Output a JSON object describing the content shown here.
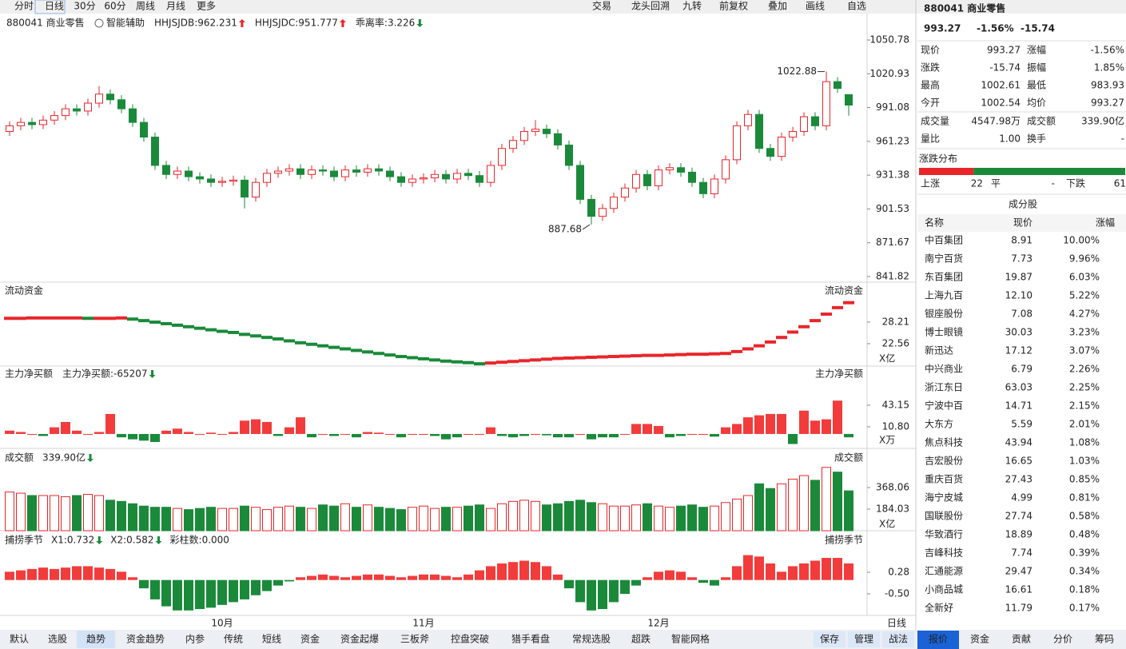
{
  "toolbar": {
    "periods": [
      "分时",
      "日线",
      "30分",
      "60分",
      "周线",
      "月线",
      "更多"
    ],
    "tools": [
      "交易",
      "龙头回溯",
      "九转",
      "前复权",
      "叠加",
      "画线",
      "自选"
    ]
  },
  "main": {
    "name": "880041 商业零售",
    "assist": "智能辅助",
    "indicators": [
      {
        "text": "HHJSJDB:962.231",
        "color": "#e08a00",
        "arrow": "up"
      },
      {
        "text": "HHJSJDC:951.777",
        "color": "#e8262a",
        "arrow": "up"
      },
      {
        "text": "乖离率:3.226",
        "color": "#e08a00",
        "arrow": "down"
      }
    ]
  },
  "price": {
    "ylim": [
      839.0,
      1073.4
    ],
    "yticks": [
      1050.78,
      1020.93,
      991.08,
      961.23,
      931.38,
      901.53,
      871.67,
      841.82
    ],
    "months": [
      null,
      null,
      null,
      null,
      null,
      null,
      null,
      null,
      null,
      null,
      null,
      null,
      null,
      null,
      null,
      null,
      null,
      null,
      null,
      "10月",
      null,
      null,
      null,
      null,
      null,
      null,
      null,
      null,
      null,
      null,
      null,
      null,
      null,
      null,
      null,
      null,
      null,
      "11月",
      null,
      null,
      null,
      null,
      null,
      null,
      null,
      null,
      null,
      null,
      null,
      null,
      null,
      null,
      null,
      null,
      null,
      null,
      null,
      null,
      "12月",
      null,
      null,
      null,
      null,
      null,
      null,
      null,
      null,
      null,
      null,
      null,
      null,
      null,
      null,
      null,
      null,
      null
    ],
    "high_label": 73,
    "low_label": 52,
    "candles": [
      [
        970,
        979,
        966,
        975
      ],
      [
        975,
        982,
        971,
        978
      ],
      [
        978,
        982,
        972,
        976
      ],
      [
        976,
        984,
        972,
        980
      ],
      [
        980,
        988,
        976,
        984
      ],
      [
        984,
        994,
        980,
        990
      ],
      [
        990,
        994,
        984,
        988
      ],
      [
        988,
        999,
        984,
        995
      ],
      [
        995,
        1010,
        991,
        1003
      ],
      [
        1003,
        1007,
        994,
        998
      ],
      [
        998,
        1002,
        986,
        990
      ],
      [
        990,
        994,
        974,
        978
      ],
      [
        978,
        982,
        961,
        965
      ],
      [
        965,
        969,
        936,
        940
      ],
      [
        940,
        944,
        928,
        932
      ],
      [
        932,
        939,
        928,
        935
      ],
      [
        935,
        939,
        926,
        930
      ],
      [
        930,
        934,
        924,
        928
      ],
      [
        928,
        932,
        921,
        925
      ],
      [
        925,
        930,
        921,
        926
      ],
      [
        926,
        931,
        922,
        927
      ],
      [
        927,
        931,
        902,
        912
      ],
      [
        912,
        929,
        908,
        925
      ],
      [
        925,
        937,
        921,
        933
      ],
      [
        933,
        939,
        929,
        935
      ],
      [
        935,
        941,
        931,
        937
      ],
      [
        937,
        941,
        928,
        932
      ],
      [
        932,
        940,
        928,
        936
      ],
      [
        936,
        940,
        931,
        935
      ],
      [
        935,
        939,
        926,
        930
      ],
      [
        930,
        940,
        926,
        936
      ],
      [
        936,
        940,
        930,
        934
      ],
      [
        934,
        941,
        930,
        937
      ],
      [
        937,
        941,
        931,
        935
      ],
      [
        935,
        939,
        926,
        930
      ],
      [
        930,
        934,
        921,
        925
      ],
      [
        925,
        932,
        921,
        928
      ],
      [
        928,
        933,
        924,
        929
      ],
      [
        929,
        936,
        925,
        932
      ],
      [
        932,
        936,
        924,
        928
      ],
      [
        928,
        937,
        924,
        933
      ],
      [
        933,
        937,
        927,
        931
      ],
      [
        931,
        935,
        921,
        925
      ],
      [
        925,
        944,
        921,
        940
      ],
      [
        940,
        959,
        936,
        955
      ],
      [
        955,
        966,
        951,
        962
      ],
      [
        962,
        974,
        958,
        970
      ],
      [
        970,
        980,
        966,
        972
      ],
      [
        972,
        976,
        964,
        968
      ],
      [
        968,
        972,
        954,
        958
      ],
      [
        958,
        962,
        936,
        940
      ],
      [
        940,
        944,
        906,
        910
      ],
      [
        910,
        914,
        887.68,
        895
      ],
      [
        895,
        906,
        891,
        902
      ],
      [
        902,
        916,
        898,
        912
      ],
      [
        912,
        924,
        908,
        920
      ],
      [
        920,
        936,
        916,
        932
      ],
      [
        932,
        936,
        918,
        922
      ],
      [
        922,
        940,
        918,
        936
      ],
      [
        936,
        942,
        932,
        938
      ],
      [
        938,
        942,
        930,
        934
      ],
      [
        934,
        938,
        921,
        925
      ],
      [
        925,
        929,
        911,
        915
      ],
      [
        915,
        932,
        911,
        928
      ],
      [
        928,
        949,
        924,
        945
      ],
      [
        945,
        979,
        941,
        975
      ],
      [
        975,
        989,
        971,
        985
      ],
      [
        985,
        989,
        951,
        955
      ],
      [
        955,
        959,
        944,
        948
      ],
      [
        948,
        969,
        944,
        965
      ],
      [
        965,
        974,
        961,
        970
      ],
      [
        970,
        987,
        966,
        983
      ],
      [
        983,
        987,
        971,
        975
      ],
      [
        975,
        1022.88,
        971,
        1014
      ],
      [
        1014,
        1018,
        1004,
        1008
      ],
      [
        1002.54,
        1002.61,
        983.93,
        993.27
      ]
    ]
  },
  "flow": {
    "title": "流动资金",
    "unit": "X亿",
    "ylim": [
      16.7,
      38.05
    ],
    "yticks": [
      22.56,
      28.21
    ],
    "values": [
      29.2,
      29.2,
      29.3,
      29.3,
      29.3,
      29.3,
      29.3,
      29.2,
      29.2,
      29.2,
      29.3,
      29.0,
      28.6,
      28.2,
      27.8,
      27.4,
      27.0,
      26.6,
      26.2,
      25.8,
      25.5,
      25.0,
      24.6,
      24.2,
      23.8,
      23.3,
      22.8,
      22.4,
      22.0,
      21.6,
      21.2,
      20.8,
      20.4,
      20.0,
      19.6,
      19.2,
      18.9,
      18.6,
      18.3,
      18.0,
      17.8,
      17.6,
      17.3,
      17.5,
      17.7,
      17.9,
      18.1,
      18.3,
      18.5,
      18.7,
      18.8,
      18.9,
      19.0,
      19.1,
      19.2,
      19.3,
      19.4,
      19.5,
      19.5,
      19.6,
      19.7,
      19.8,
      19.8,
      19.9,
      20.0,
      20.5,
      21.2,
      22.0,
      23.0,
      24.2,
      25.6,
      27.0,
      28.6,
      30.3,
      32.0,
      33.3
    ]
  },
  "netbuy": {
    "title": "主力净买额",
    "reading": "主力净买额:-65207",
    "unit": "X万",
    "ylim": [
      -20.4,
      99.4
    ],
    "yticks": [
      {
        "value": 10.8,
        "label": "10.80"
      },
      43.15
    ],
    "values": [
      5,
      3,
      0,
      -3,
      10,
      18,
      5,
      0,
      3,
      30,
      -5,
      -8,
      -10,
      -12,
      5,
      8,
      3,
      0,
      2,
      0,
      3,
      20,
      22,
      18,
      -3,
      10,
      25,
      -5,
      0,
      -3,
      0,
      -5,
      3,
      2,
      0,
      -5,
      0,
      0,
      -3,
      -8,
      -5,
      0,
      0,
      10,
      -3,
      -5,
      -3,
      0,
      -2,
      -5,
      -5,
      0,
      -8,
      -5,
      -5,
      0,
      15,
      15,
      12,
      -5,
      -3,
      0,
      0,
      -4,
      10,
      15,
      25,
      28,
      30,
      30,
      -15,
      35,
      20,
      22,
      50,
      -5
    ]
  },
  "volume": {
    "title": "成交额",
    "reading": "339.90亿",
    "unit": "X亿",
    "ylim": [
      0,
      688.4
    ],
    "yticks": [
      184.03,
      368.06
    ],
    "values": [
      330,
      320,
      300,
      300,
      300,
      290,
      300,
      310,
      300,
      260,
      250,
      230,
      210,
      200,
      200,
      190,
      180,
      190,
      200,
      190,
      190,
      210,
      200,
      180,
      200,
      210,
      200,
      190,
      220,
      210,
      230,
      200,
      220,
      200,
      190,
      180,
      200,
      210,
      190,
      200,
      200,
      210,
      220,
      190,
      230,
      250,
      260,
      250,
      220,
      230,
      250,
      260,
      240,
      230,
      210,
      210,
      220,
      230,
      210,
      200,
      210,
      220,
      200,
      210,
      240,
      270,
      300,
      400,
      360,
      400,
      440,
      470,
      430,
      540,
      500,
      340
    ]
  },
  "season": {
    "title": "捕捞季节",
    "readings": [
      {
        "text": "X1:0.732",
        "color": "#e08a00",
        "arrow": "down"
      },
      {
        "text": "X2:0.582",
        "color": "#d020c8",
        "arrow": "down"
      },
      {
        "text": "彩柱数:0.000",
        "color": "#1a8a2a"
      }
    ],
    "ylim": [
      -1.28,
      1.754
    ],
    "yticks": [
      0.28,
      {
        "value": -0.5,
        "label": "-0.50"
      }
    ],
    "values": [
      0.3,
      0.35,
      0.4,
      0.45,
      0.4,
      0.45,
      0.5,
      0.5,
      0.45,
      0.4,
      0.3,
      0.1,
      -0.3,
      -0.7,
      -0.95,
      -1.1,
      -1.1,
      -1.05,
      -1.0,
      -0.9,
      -0.8,
      -0.7,
      -0.55,
      -0.4,
      -0.2,
      -0.05,
      0.1,
      0.15,
      0.2,
      0.15,
      0.1,
      0.15,
      0.2,
      0.2,
      0.15,
      0.1,
      0.15,
      0.2,
      0.2,
      0.15,
      0.1,
      0.2,
      0.35,
      0.5,
      0.6,
      0.65,
      0.7,
      0.65,
      0.5,
      0.2,
      -0.3,
      -0.8,
      -1.1,
      -1.05,
      -0.8,
      -0.5,
      -0.2,
      0.1,
      0.3,
      0.35,
      0.3,
      0.1,
      -0.1,
      -0.2,
      0.1,
      0.5,
      0.9,
      0.85,
      0.6,
      0.3,
      0.5,
      0.6,
      0.7,
      0.8,
      0.8,
      0.6
    ]
  },
  "period_label": "日线",
  "quote": {
    "price": "993.27",
    "change_pct": "-1.56%",
    "change": "-15.74",
    "rows": [
      [
        "现价",
        "993.27",
        "涨幅",
        "-1.56%"
      ],
      [
        "涨跌",
        "-15.74",
        "振幅",
        "1.85%"
      ],
      [
        "最高",
        "1002.61",
        "最低",
        "983.93"
      ],
      [
        "今开",
        "1002.54",
        "均价",
        "993.27"
      ]
    ],
    "volume_rows": [
      [
        "成交量",
        "4547.98万",
        "成交额",
        "339.90亿"
      ],
      [
        "量比",
        "1.00",
        "换手",
        "-"
      ]
    ]
  },
  "distribution": {
    "title": "涨跌分布",
    "up_label": "上涨",
    "up": 22,
    "flat_label": "平",
    "flat": "-",
    "down_label": "下跌",
    "down": 61
  },
  "components": {
    "title": "成分股",
    "headers": [
      "名称",
      "现价",
      "涨幅"
    ],
    "rows": [
      {
        "name": "中百集团",
        "price": "8.91",
        "change": "10.00%"
      },
      {
        "name": "南宁百货",
        "price": "7.73",
        "change": "9.96%"
      },
      {
        "name": "东百集团",
        "price": "19.87",
        "change": "6.03%",
        "color": "#2a6fd6"
      },
      {
        "name": "上海九百",
        "price": "12.10",
        "change": "5.22%"
      },
      {
        "name": "银座股份",
        "price": "7.08",
        "change": "4.27%",
        "color": "#d6258a"
      },
      {
        "name": "博士眼镜",
        "price": "30.03",
        "change": "3.23%"
      },
      {
        "name": "新迅达",
        "price": "17.12",
        "change": "3.07%",
        "color": "#d6258a"
      },
      {
        "name": "中兴商业",
        "price": "6.79",
        "change": "2.26%"
      },
      {
        "name": "浙江东日",
        "price": "63.03",
        "change": "2.25%",
        "color": "#2a6fd6"
      },
      {
        "name": "宁波中百",
        "price": "14.71",
        "change": "2.15%",
        "color": "#d6258a"
      },
      {
        "name": "大东方",
        "price": "5.59",
        "change": "2.01%"
      },
      {
        "name": "焦点科技",
        "price": "43.94",
        "change": "1.08%"
      },
      {
        "name": "吉宏股份",
        "price": "16.65",
        "change": "1.03%"
      },
      {
        "name": "重庆百货",
        "price": "27.43",
        "change": "0.85%"
      },
      {
        "name": "海宁皮城",
        "price": "4.99",
        "change": "0.81%"
      },
      {
        "name": "国联股份",
        "price": "27.74",
        "change": "0.58%"
      },
      {
        "name": "华致酒行",
        "price": "18.89",
        "change": "0.48%"
      },
      {
        "name": "吉峰科技",
        "price": "7.74",
        "change": "0.39%"
      },
      {
        "name": "汇通能源",
        "price": "29.47",
        "change": "0.34%"
      },
      {
        "name": "小商品城",
        "price": "16.61",
        "change": "0.18%"
      },
      {
        "name": "全新好",
        "price": "11.79",
        "change": "0.17%",
        "color": "#d6258a"
      }
    ]
  },
  "bottom_tabs": [
    "默认",
    "选股",
    "趋势",
    "资金趋势",
    "内参",
    "传统",
    "短线",
    "资金",
    "资金起爆",
    "三板斧",
    "控盘突破",
    "猎手看盘",
    "常规选股",
    "超跌",
    "智能网格"
  ],
  "bottom_actions": [
    "保存",
    "管理",
    "战法"
  ],
  "side_tabs": [
    "报价",
    "资金",
    "贡献",
    "分价",
    "筹码"
  ]
}
